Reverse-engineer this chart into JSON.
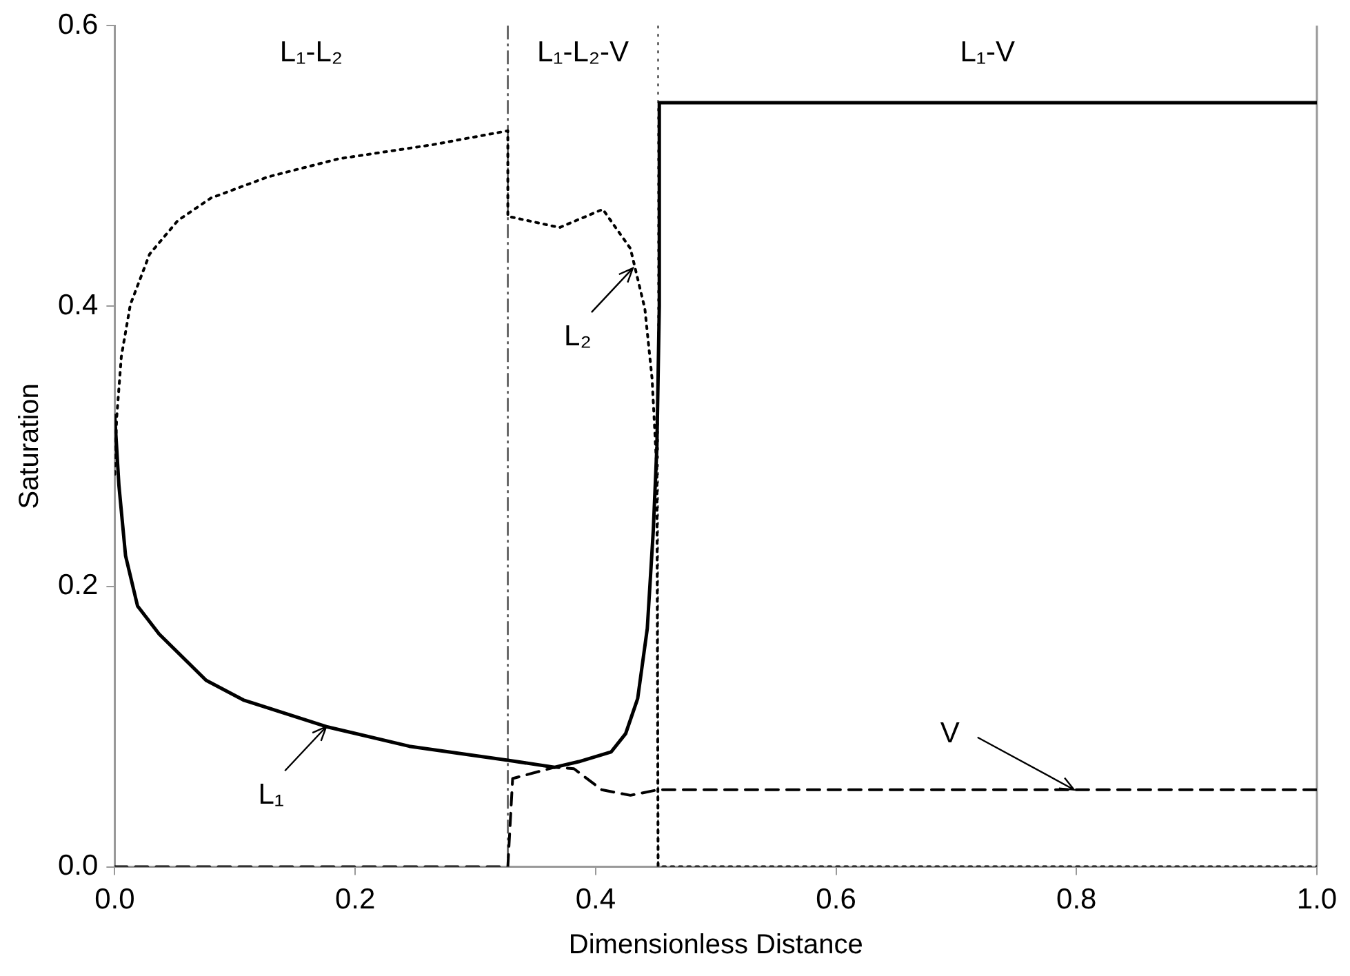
{
  "chart_data": {
    "type": "line",
    "xlabel": "Dimensionless Distance",
    "ylabel": "Saturation",
    "xlim": [
      0,
      1
    ],
    "xticks": [
      {
        "value": 0,
        "label": "0.0"
      },
      0.2,
      0.4,
      0.6,
      0.8,
      {
        "value": 1,
        "label": "1.0"
      }
    ],
    "ylim": [
      0,
      0.6
    ],
    "yticks": [
      {
        "value": 0,
        "label": "0.0"
      },
      0.2,
      0.4,
      0.6
    ],
    "grid": false,
    "legend": false,
    "marker": "none",
    "series": [
      {
        "color": "#000000",
        "line_style": "solid",
        "x": [
          0,
          0.0035,
          0.009,
          0.019,
          0.037,
          0.076,
          0.107,
          0.176,
          0.245,
          0.327,
          0.366,
          0.386,
          0.413,
          0.425,
          0.435,
          0.443,
          0.448,
          0.451,
          0.453,
          0.453,
          1.0
        ],
        "values": [
          0.322,
          0.272,
          0.222,
          0.186,
          0.166,
          0.133,
          0.119,
          0.1,
          0.086,
          0.076,
          0.071,
          0.075,
          0.082,
          0.095,
          0.12,
          0.17,
          0.24,
          0.3,
          0.4,
          0.545,
          0.545
        ]
      },
      {
        "color": "#000000",
        "line_style": "dotted",
        "x": [
          0,
          0.0016,
          0.0055,
          0.013,
          0.029,
          0.0525,
          0.08,
          0.127,
          0.186,
          0.264,
          0.327,
          0.327,
          0.37,
          0.406,
          0.429,
          0.441,
          0.447,
          0.451,
          0.452,
          1.0
        ],
        "values": [
          0.28,
          0.32,
          0.364,
          0.401,
          0.437,
          0.461,
          0.477,
          0.492,
          0.505,
          0.515,
          0.525,
          0.464,
          0.456,
          0.469,
          0.441,
          0.398,
          0.348,
          0.282,
          0,
          0
        ]
      },
      {
        "color": "#000000",
        "line_style": "dashed",
        "x": [
          0,
          0.327,
          0.331,
          0.366,
          0.382,
          0.405,
          0.429,
          0.452,
          1.0
        ],
        "values": [
          0,
          0,
          0.063,
          0.071,
          0.07,
          0.055,
          0.051,
          0.055,
          0.055
        ]
      }
    ],
    "ref_lines": [
      {
        "axis": "x",
        "value": 0.327,
        "color": "#555555",
        "line_style": "dashed"
      },
      {
        "axis": "x",
        "value": 0.452,
        "color": "#555555",
        "line_style": "dotted"
      }
    ],
    "annotations": [
      "L₁-L₂",
      "L₁-L₂-V",
      "L₁-V",
      {
        "text": "L₁",
        "x": 0.176,
        "y": 0.1
      },
      {
        "text": "L₂",
        "x": 0.431,
        "y": 0.427
      },
      {
        "text": "V",
        "x": 0.798,
        "y": 0.055
      }
    ]
  }
}
